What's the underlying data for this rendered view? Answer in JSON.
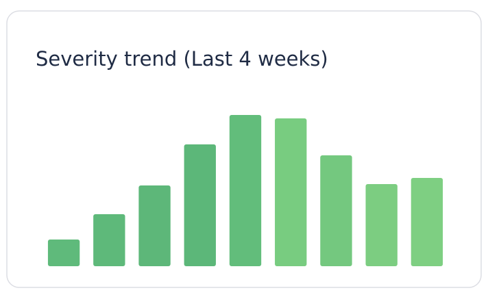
{
  "chart_data": {
    "type": "bar",
    "title": "Severity trend (Last 4 weeks)",
    "categories": [
      null,
      null,
      null,
      null,
      null,
      null,
      null,
      null,
      null
    ],
    "values": [
      39,
      76,
      118,
      178,
      221,
      216,
      162,
      120,
      129
    ],
    "colors": [
      "#5fba7b",
      "#5eb97a",
      "#5db779",
      "#5cb779",
      "#62bd7b",
      "#78cc80",
      "#74c87f",
      "#7ccd81",
      "#7ecf82"
    ],
    "ylim": [
      0,
      240
    ]
  }
}
